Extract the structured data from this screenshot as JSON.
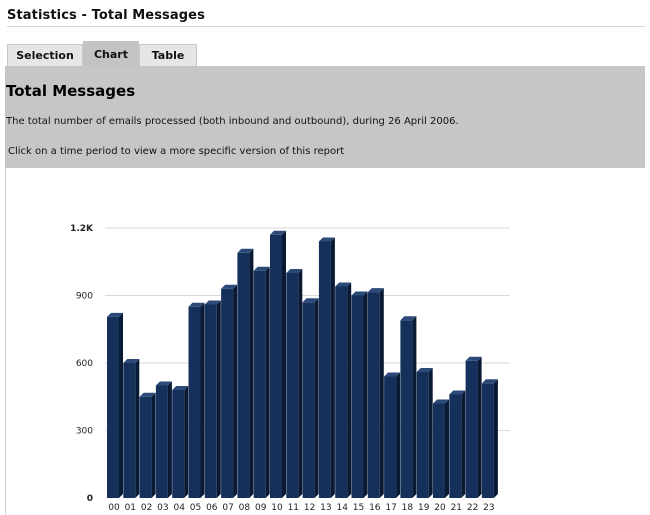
{
  "page": {
    "title": "Statistics - Total Messages"
  },
  "tabs": [
    {
      "label": "Selection",
      "active": false
    },
    {
      "label": "Chart",
      "active": true
    },
    {
      "label": "Table",
      "active": false
    }
  ],
  "panel": {
    "heading": "Total Messages",
    "description": "The total number of emails processed (both inbound and outbound), during 26 April 2006.",
    "hint": "Click on a time period to view a more specific version of this report"
  },
  "colors": {
    "bar_front": "#16305c",
    "bar_side": "#0a1a35",
    "bar_top": "#2b4a78",
    "panel_bg": "#c6c6c6",
    "grid": "#d9d9d9"
  },
  "chart_data": {
    "type": "bar",
    "categories": [
      "00",
      "01",
      "02",
      "03",
      "04",
      "05",
      "06",
      "07",
      "08",
      "09",
      "10",
      "11",
      "12",
      "13",
      "14",
      "15",
      "16",
      "17",
      "18",
      "19",
      "20",
      "21",
      "22",
      "23"
    ],
    "values": [
      805,
      600,
      450,
      500,
      480,
      850,
      860,
      930,
      1090,
      1010,
      1170,
      1000,
      870,
      1140,
      940,
      900,
      915,
      540,
      790,
      560,
      420,
      460,
      610,
      510
    ],
    "yticks": [
      {
        "value": 0,
        "label": "0"
      },
      {
        "value": 300,
        "label": "300"
      },
      {
        "value": 600,
        "label": "600"
      },
      {
        "value": 900,
        "label": "900"
      },
      {
        "value": 1200,
        "label": "1.2K"
      }
    ],
    "ylim": [
      0,
      1200
    ],
    "grid": true,
    "title": "",
    "xlabel": "",
    "ylabel": ""
  }
}
